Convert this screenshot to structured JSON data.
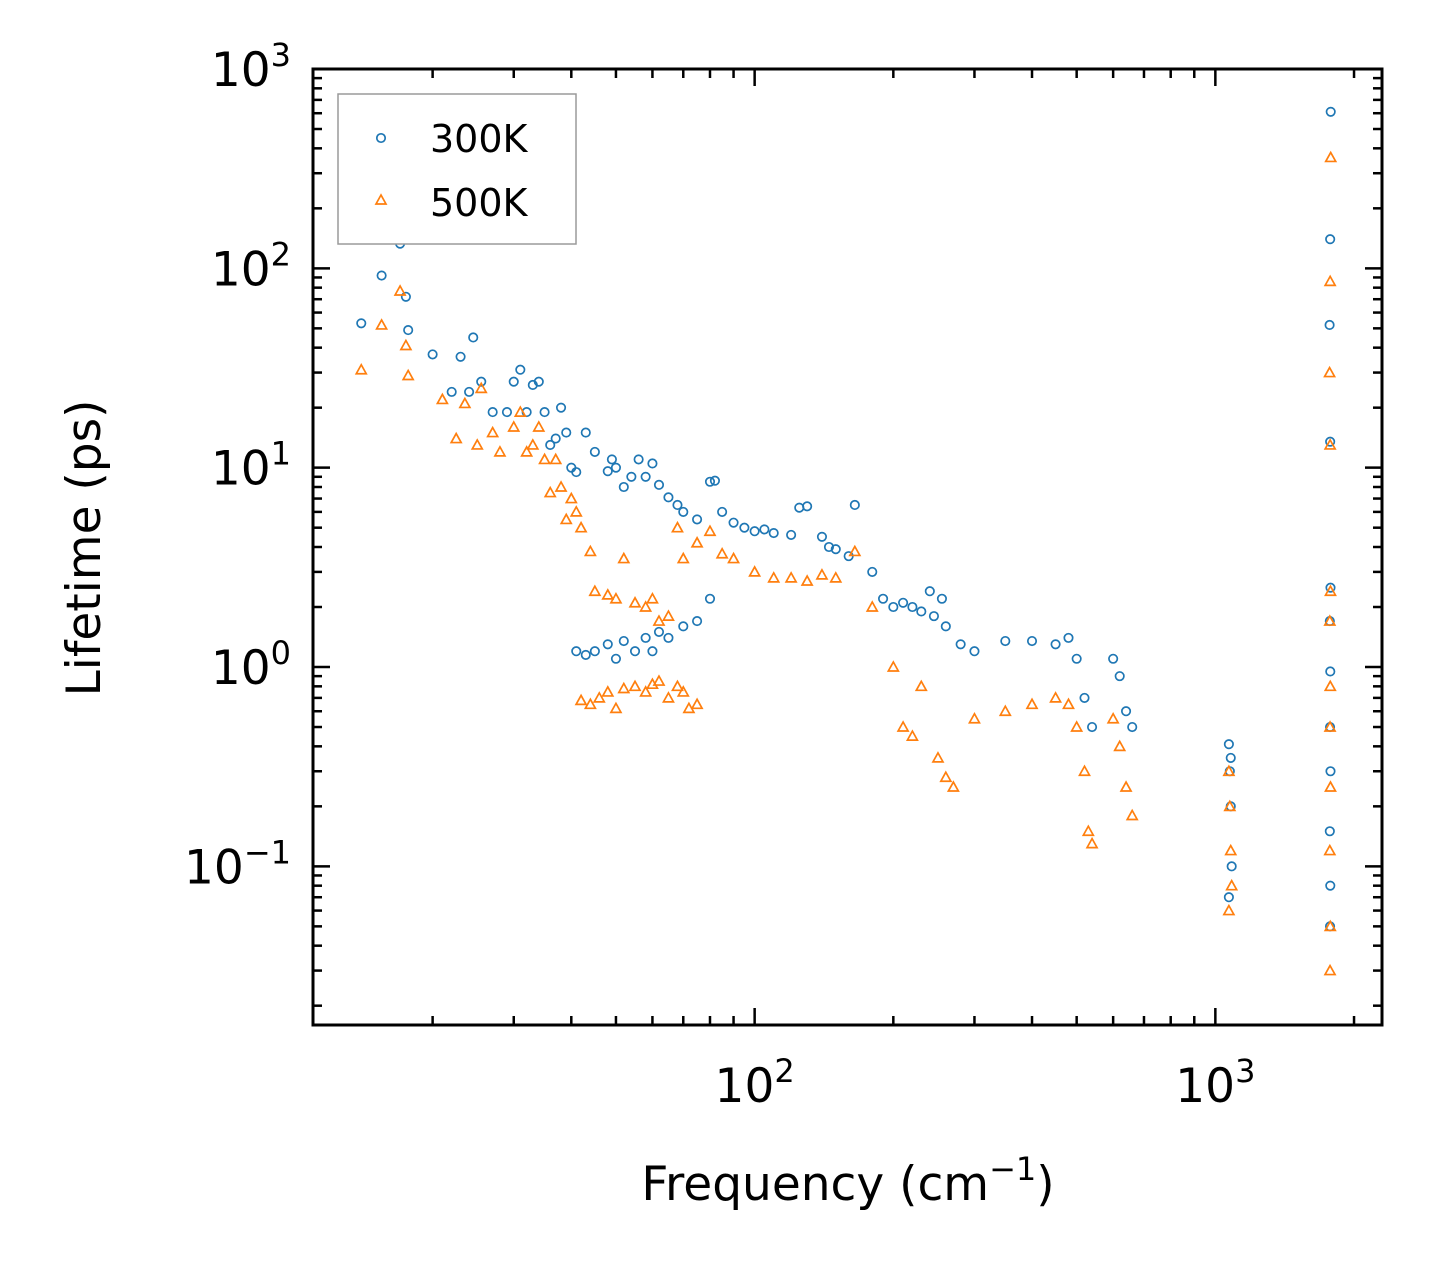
{
  "chart_data": {
    "type": "scatter",
    "title": "",
    "xlabel": "Frequency (cm",
    "xlabel_sup": "−1",
    "xlabel_suffix": ")",
    "ylabel": "Lifetime (ps)",
    "xscale": "log",
    "yscale": "log",
    "xlim": [
      11,
      2300
    ],
    "ylim": [
      0.016,
      1000
    ],
    "x_ticks": [
      {
        "base": "10",
        "exp": "2",
        "value": 100
      },
      {
        "base": "10",
        "exp": "3",
        "value": 1000
      }
    ],
    "y_ticks": [
      {
        "base": "10",
        "exp": "−1",
        "value": 0.1
      },
      {
        "base": "10",
        "exp": "0",
        "value": 1
      },
      {
        "base": "10",
        "exp": "1",
        "value": 10
      },
      {
        "base": "10",
        "exp": "2",
        "value": 100
      },
      {
        "base": "10",
        "exp": "3",
        "value": 1000
      }
    ],
    "legend_position": "top-left",
    "series": [
      {
        "name": "300K",
        "marker": "circle",
        "color": "#1f77b4",
        "points": [
          [
            14,
            53
          ],
          [
            15.5,
            92
          ],
          [
            17,
            133
          ],
          [
            17.5,
            72
          ],
          [
            17.7,
            49
          ],
          [
            20,
            37
          ],
          [
            22,
            24
          ],
          [
            23,
            36
          ],
          [
            24,
            24
          ],
          [
            24.5,
            45
          ],
          [
            25.5,
            27
          ],
          [
            27,
            19
          ],
          [
            29,
            19
          ],
          [
            30,
            27
          ],
          [
            31,
            31
          ],
          [
            32,
            19
          ],
          [
            33,
            26
          ],
          [
            34,
            27
          ],
          [
            35,
            19
          ],
          [
            36,
            13
          ],
          [
            37,
            14
          ],
          [
            38,
            20
          ],
          [
            39,
            15
          ],
          [
            40,
            10
          ],
          [
            41,
            9.5
          ],
          [
            43,
            15
          ],
          [
            45,
            12
          ],
          [
            48,
            9.6
          ],
          [
            49,
            11
          ],
          [
            50,
            10
          ],
          [
            52,
            8
          ],
          [
            54,
            9
          ],
          [
            56,
            11
          ],
          [
            58,
            9
          ],
          [
            60,
            10.5
          ],
          [
            62,
            8.2
          ],
          [
            65,
            7.1
          ],
          [
            68,
            6.5
          ],
          [
            70,
            6
          ],
          [
            75,
            5.5
          ],
          [
            80,
            8.5
          ],
          [
            82,
            8.6
          ],
          [
            85,
            6
          ],
          [
            90,
            5.3
          ],
          [
            95,
            5
          ],
          [
            100,
            4.8
          ],
          [
            105,
            4.9
          ],
          [
            110,
            4.7
          ],
          [
            120,
            4.6
          ],
          [
            125,
            6.3
          ],
          [
            130,
            6.4
          ],
          [
            140,
            4.5
          ],
          [
            145,
            4
          ],
          [
            150,
            3.9
          ],
          [
            160,
            3.6
          ],
          [
            165,
            6.5
          ],
          [
            180,
            3
          ],
          [
            190,
            2.2
          ],
          [
            200,
            2.0
          ],
          [
            210,
            2.1
          ],
          [
            220,
            2.0
          ],
          [
            230,
            1.9
          ],
          [
            240,
            2.4
          ],
          [
            245,
            1.8
          ],
          [
            255,
            2.2
          ],
          [
            260,
            1.6
          ],
          [
            280,
            1.3
          ],
          [
            300,
            1.2
          ],
          [
            350,
            1.35
          ],
          [
            400,
            1.35
          ],
          [
            450,
            1.3
          ],
          [
            480,
            1.4
          ],
          [
            500,
            1.1
          ],
          [
            520,
            0.7
          ],
          [
            540,
            0.5
          ],
          [
            600,
            1.1
          ],
          [
            620,
            0.9
          ],
          [
            640,
            0.6
          ],
          [
            660,
            0.5
          ],
          [
            1070,
            0.41
          ],
          [
            1075,
            0.3
          ],
          [
            1080,
            0.2
          ],
          [
            1085,
            0.1
          ],
          [
            1070,
            0.07
          ],
          [
            1080,
            0.35
          ],
          [
            1780,
            610
          ],
          [
            1775,
            140
          ],
          [
            1770,
            52
          ],
          [
            1775,
            13.5
          ],
          [
            1778,
            2.5
          ],
          [
            1772,
            1.7
          ],
          [
            1776,
            0.95
          ],
          [
            1774,
            0.5
          ],
          [
            1778,
            0.3
          ],
          [
            1772,
            0.15
          ],
          [
            1776,
            0.08
          ],
          [
            1774,
            0.05
          ],
          [
            41,
            1.2
          ],
          [
            43,
            1.15
          ],
          [
            45,
            1.2
          ],
          [
            48,
            1.3
          ],
          [
            50,
            1.1
          ],
          [
            52,
            1.35
          ],
          [
            55,
            1.2
          ],
          [
            58,
            1.4
          ],
          [
            60,
            1.2
          ],
          [
            62,
            1.5
          ],
          [
            65,
            1.4
          ],
          [
            70,
            1.6
          ],
          [
            75,
            1.7
          ],
          [
            80,
            2.2
          ]
        ]
      },
      {
        "name": "500K",
        "marker": "triangle",
        "color": "#ff7f0e",
        "points": [
          [
            14,
            31
          ],
          [
            15.5,
            52
          ],
          [
            17,
            77
          ],
          [
            17.5,
            41
          ],
          [
            17.7,
            29
          ],
          [
            21,
            22
          ],
          [
            22.5,
            14
          ],
          [
            23.5,
            21
          ],
          [
            25,
            13
          ],
          [
            25.5,
            25
          ],
          [
            27,
            15
          ],
          [
            28,
            12
          ],
          [
            30,
            16
          ],
          [
            31,
            19
          ],
          [
            32,
            12
          ],
          [
            33,
            13
          ],
          [
            34,
            16
          ],
          [
            35,
            11
          ],
          [
            36,
            7.5
          ],
          [
            37,
            11
          ],
          [
            38,
            8
          ],
          [
            39,
            5.5
          ],
          [
            40,
            7
          ],
          [
            41,
            6
          ],
          [
            42,
            5
          ],
          [
            44,
            3.8
          ],
          [
            45,
            2.4
          ],
          [
            48,
            2.3
          ],
          [
            50,
            2.2
          ],
          [
            52,
            3.5
          ],
          [
            55,
            2.1
          ],
          [
            58,
            2.0
          ],
          [
            60,
            2.2
          ],
          [
            62,
            1.7
          ],
          [
            65,
            1.8
          ],
          [
            68,
            5
          ],
          [
            70,
            3.5
          ],
          [
            75,
            4.2
          ],
          [
            80,
            4.8
          ],
          [
            85,
            3.7
          ],
          [
            90,
            3.5
          ],
          [
            100,
            3.0
          ],
          [
            110,
            2.8
          ],
          [
            120,
            2.8
          ],
          [
            130,
            2.7
          ],
          [
            140,
            2.9
          ],
          [
            150,
            2.8
          ],
          [
            165,
            3.8
          ],
          [
            180,
            2.0
          ],
          [
            200,
            1.0
          ],
          [
            210,
            0.5
          ],
          [
            220,
            0.45
          ],
          [
            230,
            0.8
          ],
          [
            250,
            0.35
          ],
          [
            260,
            0.28
          ],
          [
            270,
            0.25
          ],
          [
            300,
            0.55
          ],
          [
            350,
            0.6
          ],
          [
            400,
            0.65
          ],
          [
            450,
            0.7
          ],
          [
            480,
            0.65
          ],
          [
            500,
            0.5
          ],
          [
            520,
            0.3
          ],
          [
            530,
            0.15
          ],
          [
            540,
            0.13
          ],
          [
            600,
            0.55
          ],
          [
            620,
            0.4
          ],
          [
            640,
            0.25
          ],
          [
            660,
            0.18
          ],
          [
            1070,
            0.3
          ],
          [
            1075,
            0.2
          ],
          [
            1080,
            0.12
          ],
          [
            1085,
            0.08
          ],
          [
            1070,
            0.06
          ],
          [
            1780,
            360
          ],
          [
            1775,
            86
          ],
          [
            1770,
            30
          ],
          [
            1775,
            13
          ],
          [
            1778,
            2.4
          ],
          [
            1772,
            1.7
          ],
          [
            1776,
            0.8
          ],
          [
            1774,
            0.5
          ],
          [
            1778,
            0.25
          ],
          [
            1772,
            0.12
          ],
          [
            1776,
            0.05
          ],
          [
            1774,
            0.03
          ],
          [
            42,
            0.68
          ],
          [
            44,
            0.65
          ],
          [
            46,
            0.7
          ],
          [
            48,
            0.75
          ],
          [
            50,
            0.62
          ],
          [
            52,
            0.78
          ],
          [
            55,
            0.8
          ],
          [
            58,
            0.75
          ],
          [
            60,
            0.82
          ],
          [
            62,
            0.85
          ],
          [
            65,
            0.7
          ],
          [
            68,
            0.8
          ],
          [
            70,
            0.75
          ],
          [
            72,
            0.62
          ],
          [
            75,
            0.65
          ]
        ]
      }
    ]
  }
}
